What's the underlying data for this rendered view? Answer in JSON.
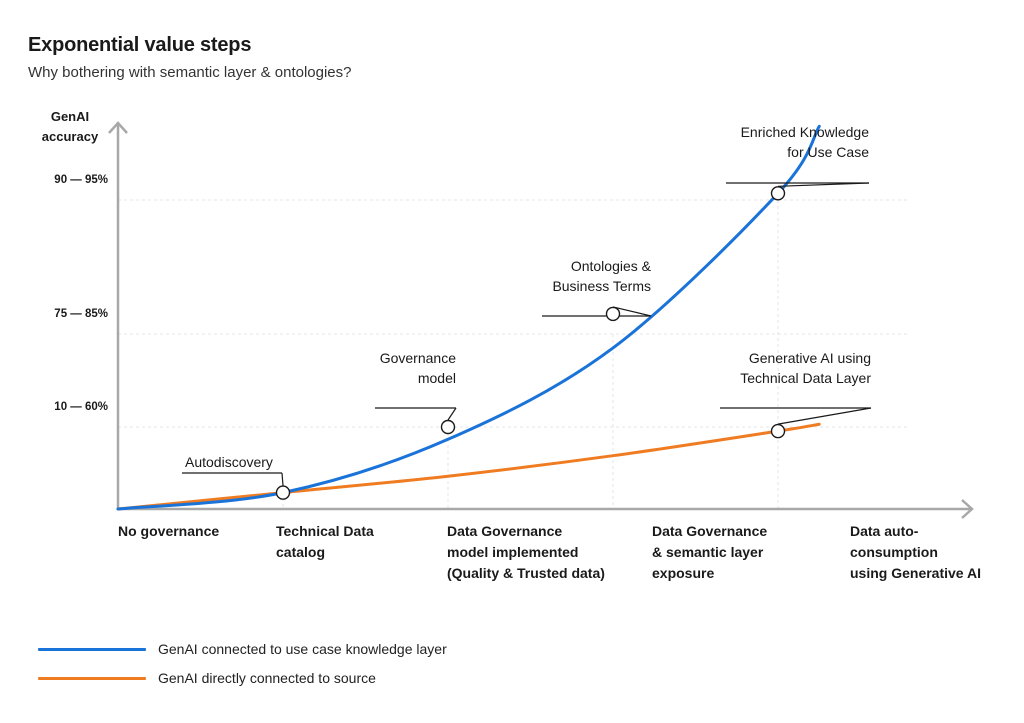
{
  "title": "Exponential value steps",
  "subtitle": "Why bothering with semantic layer & ontologies?",
  "chart_data": {
    "type": "line",
    "ylabel": [
      "GenAI",
      "accuracy"
    ],
    "yticks": [
      "10 — 60%",
      "75 — 85%",
      "90 — 95%"
    ],
    "ytick_values": [
      1,
      2,
      3
    ],
    "categories": [
      [
        "No governance"
      ],
      [
        "Technical Data",
        "catalog"
      ],
      [
        "Data Governance",
        "model implemented",
        "(Quality & Trusted data)"
      ],
      [
        "Data Governance",
        "& semantic layer",
        "exposure"
      ],
      [
        "Data auto-",
        "consumption",
        "using Generative AI"
      ]
    ],
    "series": [
      {
        "name": "GenAI connected to use case knowledge layer",
        "color": "#1a73d9",
        "x": [
          0,
          1,
          2,
          3,
          4,
          4.25
        ],
        "y": [
          0,
          0.2,
          0.85,
          1.85,
          3.05,
          3.55
        ]
      },
      {
        "name": "GenAI directly connected to source",
        "color": "#f07c22",
        "x": [
          0,
          1,
          2,
          3,
          4,
          4.25
        ],
        "y": [
          0,
          0.2,
          0.4,
          0.65,
          0.95,
          1.03
        ]
      }
    ],
    "annotations": [
      {
        "lines": [
          "Autodiscovery"
        ],
        "x": 1,
        "y": 0.2
      },
      {
        "lines": [
          "Governance",
          "model"
        ],
        "x": 2,
        "y": 1
      },
      {
        "lines": [
          "Ontologies &",
          "Business Terms"
        ],
        "x": 3,
        "y": 2.15
      },
      {
        "lines": [
          "Enriched Knowledge",
          "for Use Case"
        ],
        "x": 4,
        "y": 3.05
      },
      {
        "lines": [
          "Generative AI using",
          "Technical Data Layer"
        ],
        "x": 4,
        "y": 0.95
      }
    ],
    "grid": true,
    "legend_position": "bottom-left"
  }
}
